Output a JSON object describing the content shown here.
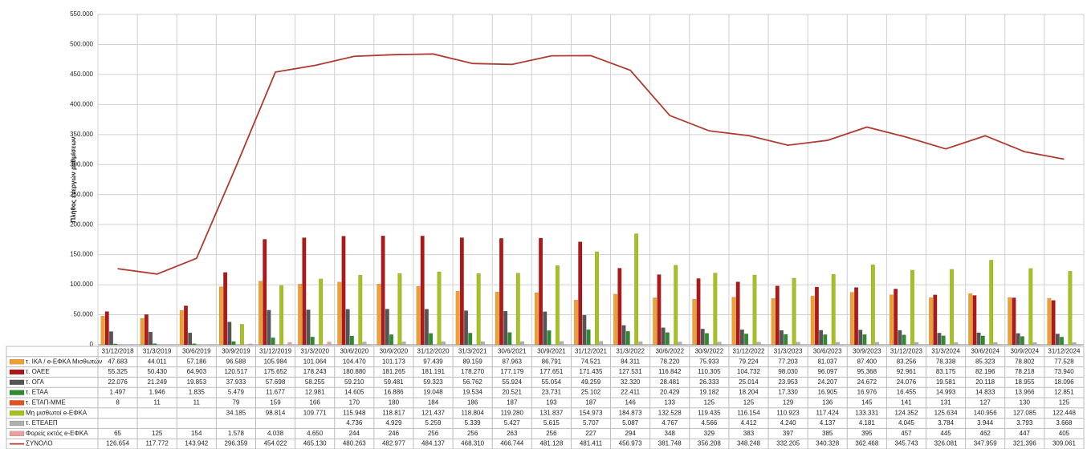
{
  "chart_data": {
    "type": "bar",
    "y_axis_label": "Πλήθος ενεργών ρυθμίσεων",
    "categories": [
      "31/12/2018",
      "31/3/2019",
      "30/6/2019",
      "30/9/2019",
      "31/12/2019",
      "31/3/2020",
      "30/6/2020",
      "30/9/2020",
      "31/12/2020",
      "31/3/2021",
      "30/6/2021",
      "30/9/2021",
      "31/12/2021",
      "31/3/2022",
      "30/6/2022",
      "30/9/2022",
      "31/12/2022",
      "31/3/2023",
      "30/6/2023",
      "30/9/2023",
      "31/12/2023",
      "31/3/2024",
      "30/6/2024",
      "30/9/2024",
      "31/12/2024"
    ],
    "ylim": [
      0,
      550000
    ],
    "yticks": [
      {
        "value": 0,
        "label": "0"
      },
      {
        "value": 50000,
        "label": "50.000"
      },
      {
        "value": 100000,
        "label": "100.000"
      },
      {
        "value": 150000,
        "label": "150.000"
      },
      {
        "value": 200000,
        "label": "200.000"
      },
      {
        "value": 250000,
        "label": "250.000"
      },
      {
        "value": 300000,
        "label": "300.000"
      },
      {
        "value": 350000,
        "label": "350.000"
      },
      {
        "value": 400000,
        "label": "400.000"
      },
      {
        "value": 450000,
        "label": "450.000"
      },
      {
        "value": 500000,
        "label": "500.000"
      },
      {
        "value": 550000,
        "label": "550.000"
      }
    ],
    "grid": true,
    "series": [
      {
        "name": "τ. ΙΚΑ / e-ΕΦΚΑ Μισθωτών",
        "color": "#f0a030",
        "values": [
          47683,
          44011,
          57186,
          96588,
          105984,
          101064,
          104470,
          101173,
          97439,
          89159,
          87963,
          86791,
          74521,
          84311,
          78220,
          75933,
          79224,
          77203,
          81037,
          87400,
          83256,
          78338,
          85323,
          78802,
          77528
        ],
        "value_labels": [
          "47.683",
          "44.011",
          "57.186",
          "96.588",
          "105.984",
          "101.064",
          "104.470",
          "101.173",
          "97.439",
          "89.159",
          "87.963",
          "86.791",
          "74.521",
          "84.311",
          "78.220",
          "75.933",
          "79.224",
          "77.203",
          "81.037",
          "87.400",
          "83.256",
          "78.338",
          "85.323",
          "78.802",
          "77.528"
        ]
      },
      {
        "name": "τ. ΟΑΕΕ",
        "color": "#b01818",
        "values": [
          55325,
          50430,
          64903,
          120517,
          175652,
          178243,
          180880,
          181265,
          181191,
          178270,
          177179,
          177651,
          171435,
          127531,
          116842,
          110305,
          104732,
          98030,
          96097,
          95368,
          92961,
          83175,
          82196,
          78218,
          73940
        ],
        "value_labels": [
          "55.325",
          "50.430",
          "64.903",
          "120.517",
          "175.652",
          "178.243",
          "180.880",
          "181.265",
          "181.191",
          "178.270",
          "177.179",
          "177.651",
          "171.435",
          "127.531",
          "116.842",
          "110.305",
          "104.732",
          "98.030",
          "96.097",
          "95.368",
          "92.961",
          "83.175",
          "82.196",
          "78.218",
          "73.940"
        ]
      },
      {
        "name": "τ. ΟΓΑ",
        "color": "#555555",
        "values": [
          22076,
          21249,
          19853,
          37933,
          57698,
          58255,
          59210,
          59481,
          59323,
          56762,
          55924,
          55054,
          49259,
          32320,
          28481,
          26333,
          25014,
          23953,
          24207,
          24672,
          24076,
          19581,
          20118,
          18955,
          18096
        ],
        "value_labels": [
          "22.076",
          "21.249",
          "19.853",
          "37.933",
          "57.698",
          "58.255",
          "59.210",
          "59.481",
          "59.323",
          "56.762",
          "55.924",
          "55.054",
          "49.259",
          "32.320",
          "28.481",
          "26.333",
          "25.014",
          "23.953",
          "24.207",
          "24.672",
          "24.076",
          "19.581",
          "20.118",
          "18.955",
          "18.096"
        ]
      },
      {
        "name": "τ. ΕΤΑΑ",
        "color": "#2e8b2e",
        "values": [
          1497,
          1946,
          1835,
          5479,
          11677,
          12981,
          14605,
          16886,
          19048,
          19534,
          20521,
          23731,
          25102,
          22411,
          20429,
          19182,
          18204,
          17330,
          16905,
          16976,
          16455,
          14993,
          14833,
          13966,
          12851
        ],
        "value_labels": [
          "1.497",
          "1.946",
          "1.835",
          "5.479",
          "11.677",
          "12.981",
          "14.605",
          "16.886",
          "19.048",
          "19.534",
          "20.521",
          "23.731",
          "25.102",
          "22.411",
          "20.429",
          "19.182",
          "18.204",
          "17.330",
          "16.905",
          "16.976",
          "16.455",
          "14.993",
          "14.833",
          "13.966",
          "12.851"
        ]
      },
      {
        "name": "τ. ΕΤΑΠ-ΜΜΕ",
        "color": "#e85020",
        "values": [
          8,
          11,
          11,
          79,
          159,
          166,
          170,
          180,
          184,
          186,
          187,
          193,
          187,
          146,
          133,
          125,
          125,
          129,
          136,
          145,
          141,
          131,
          127,
          130,
          125
        ]
      },
      {
        "name": "Μη μισθωτοί e-ΕΦΚΑ",
        "color": "#a8c020",
        "values": [
          null,
          null,
          null,
          34185,
          98814,
          109771,
          115948,
          118817,
          121437,
          118804,
          119280,
          131837,
          154973,
          184873,
          132528,
          119435,
          116154,
          110923,
          117424,
          133331,
          124352,
          125634,
          140956,
          127085,
          122448
        ],
        "value_labels": [
          null,
          null,
          null,
          "34.185",
          "98.814",
          "109.771",
          "115.948",
          "118.817",
          "121.437",
          "118.804",
          "119.280",
          "131.837",
          "154.973",
          "184.873",
          "132.528",
          "119.435",
          "116.154",
          "110.923",
          "117.424",
          "133.331",
          "124.352",
          "125.634",
          "140.956",
          "127.085",
          "122.448"
        ]
      },
      {
        "name": "τ. ΕΤΕΑΕΠ",
        "color": "#b0b0b0",
        "values": [
          null,
          null,
          null,
          null,
          null,
          null,
          4736,
          4929,
          5259,
          5339,
          5427,
          5615,
          5707,
          5087,
          4767,
          4566,
          4412,
          4240,
          4137,
          4181,
          4045,
          3784,
          3944,
          3793,
          3668
        ],
        "value_labels": [
          null,
          null,
          null,
          null,
          null,
          null,
          "4.736",
          "4.929",
          "5.259",
          "5.339",
          "5.427",
          "5.615",
          "5.707",
          "5.087",
          "4.767",
          "4.566",
          "4.412",
          "4.240",
          "4.137",
          "4.181",
          "4.045",
          "3.784",
          "3.944",
          "3.793",
          "3.668"
        ]
      },
      {
        "name": "Φορείς εκτός e-ΕΦΚΑ",
        "color": "#e8a0a0",
        "values": [
          65,
          125,
          154,
          1578,
          4038,
          4650,
          244,
          246,
          256,
          256,
          263,
          256,
          227,
          294,
          348,
          329,
          383,
          397,
          385,
          395,
          457,
          445,
          462,
          447,
          405
        ],
        "value_labels": [
          "65",
          "125",
          "154",
          "1.578",
          "4.038",
          "4.650",
          "244",
          "246",
          "256",
          "256",
          "263",
          "256",
          "227",
          "294",
          "348",
          "329",
          "383",
          "397",
          "385",
          "395",
          "457",
          "445",
          "462",
          "447",
          "405"
        ]
      },
      {
        "name": "ΣΥΝΟΛΟ",
        "color": "#b03a30",
        "type": "line",
        "values": [
          126654,
          117772,
          143942,
          296359,
          454022,
          465130,
          480263,
          482977,
          484137,
          468310,
          466744,
          481128,
          481411,
          456973,
          381748,
          356208,
          348248,
          332205,
          340328,
          362468,
          345743,
          326081,
          347959,
          321396,
          309061
        ],
        "value_labels": [
          "126.654",
          "117.772",
          "143.942",
          "296.359",
          "454.022",
          "465.130",
          "480.263",
          "482.977",
          "484.137",
          "468.310",
          "466.744",
          "481.128",
          "481.411",
          "456.973",
          "381.748",
          "356.208",
          "348.248",
          "332.205",
          "340.328",
          "362.468",
          "345.743",
          "326.081",
          "347.959",
          "321.396",
          "309.061"
        ]
      }
    ]
  }
}
